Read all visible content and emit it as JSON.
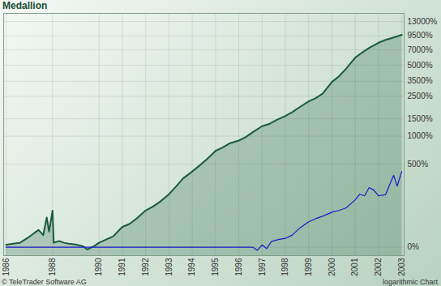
{
  "chart_data": {
    "type": "line",
    "title": "Medallion",
    "source": "© TeleTrader Software AG",
    "note": "logarithmic Chart",
    "log": "y",
    "grid": true,
    "xlim": [
      1985.9,
      2003.1
    ],
    "xticks": [
      1986,
      1988,
      1990,
      1991,
      1992,
      1993,
      1994,
      1995,
      1996,
      1997,
      1998,
      1999,
      2000,
      2001,
      2002,
      2003
    ],
    "ylim": [
      -20,
      15500
    ],
    "yticks": [
      {
        "value": 13000,
        "label": "13000%"
      },
      {
        "value": 9500,
        "label": "9500%"
      },
      {
        "value": 7000,
        "label": "7000%"
      },
      {
        "value": 5000,
        "label": "5000%"
      },
      {
        "value": 3500,
        "label": "3500%"
      },
      {
        "value": 2500,
        "label": "2500%"
      },
      {
        "value": 1500,
        "label": "1500%"
      },
      {
        "value": 1000,
        "label": "1000%"
      },
      {
        "value": 500,
        "label": "500%"
      },
      {
        "value": 0,
        "label": "0%"
      }
    ],
    "series": [
      {
        "type": "area",
        "color": "#1a5c3c",
        "x": [
          1986.0,
          1986.3,
          1986.6,
          1987.0,
          1987.2,
          1987.4,
          1987.6,
          1987.75,
          1987.85,
          1988.0,
          1988.05,
          1988.15,
          1988.3,
          1988.5,
          1988.7,
          1989.0,
          1989.3,
          1989.5,
          1989.8,
          1990.0,
          1990.3,
          1990.6,
          1991.0,
          1991.3,
          1991.6,
          1992.0,
          1992.3,
          1992.6,
          1993.0,
          1993.3,
          1993.6,
          1994.0,
          1994.3,
          1994.6,
          1995.0,
          1995.3,
          1995.6,
          1996.0,
          1996.3,
          1996.6,
          1997.0,
          1997.3,
          1997.6,
          1998.0,
          1998.3,
          1998.6,
          1999.0,
          1999.3,
          1999.6,
          2000.0,
          2000.3,
          2000.6,
          2001.0,
          2001.3,
          2001.6,
          2002.0,
          2002.3,
          2002.6,
          2003.0
        ],
        "values": [
          5,
          8,
          10,
          25,
          35,
          45,
          30,
          90,
          40,
          120,
          10,
          12,
          14,
          10,
          8,
          6,
          2,
          -5,
          3,
          10,
          18,
          26,
          55,
          65,
          85,
          121,
          140,
          165,
          214,
          270,
          340,
          413,
          480,
          560,
          700,
          760,
          840,
          900,
          980,
          1100,
          1264,
          1330,
          1450,
          1600,
          1750,
          1950,
          2230,
          2400,
          2650,
          3450,
          3900,
          4600,
          5900,
          6600,
          7300,
          8170,
          8700,
          9100,
          9700
        ]
      },
      {
        "type": "line",
        "color": "#1a1acc",
        "x": [
          1986.0,
          1996.6,
          1996.8,
          1997.0,
          1997.2,
          1997.4,
          1997.7,
          1998.0,
          1998.3,
          1998.6,
          1999.0,
          1999.3,
          1999.6,
          2000.0,
          2000.3,
          2000.6,
          2001.0,
          2001.2,
          2001.4,
          2001.6,
          2001.8,
          2002.0,
          2002.3,
          2002.5,
          2002.65,
          2002.8,
          2003.0
        ],
        "values": [
          0,
          0,
          -7,
          5,
          -3,
          13,
          18,
          21,
          30,
          50,
          73,
          85,
          95,
          113,
          121,
          133,
          178,
          214,
          203,
          262,
          243,
          203,
          210,
          295,
          371,
          274,
          413
        ]
      }
    ]
  }
}
